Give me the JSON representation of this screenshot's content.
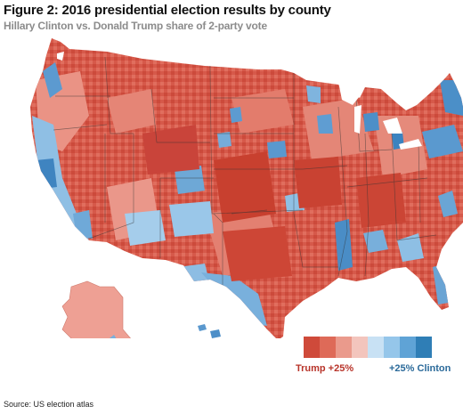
{
  "title": "Figure 2: 2016 presidential election results by county",
  "subtitle": "Hillary Clinton vs. Donald Trump share of 2-party vote",
  "legend": {
    "left_label": "Trump +25%",
    "right_label": "+25% Clinton",
    "left_color": "#b8342a",
    "right_color": "#2b6a9a",
    "swatches": [
      "#cf4a3a",
      "#de6a58",
      "#ea9a8c",
      "#f3c5bd",
      "#c8e1f4",
      "#95c6ea",
      "#5fa3d6",
      "#2f7eb6"
    ]
  },
  "colors": {
    "trump_strong": "#cf4a3a",
    "trump_mid": "#e2705f",
    "trump_light": "#ee9f93",
    "clinton_light": "#a6cfee",
    "clinton_mid": "#5ea0d4",
    "clinton_strong": "#2f74ad"
  },
  "source": "Source: US election atlas"
}
